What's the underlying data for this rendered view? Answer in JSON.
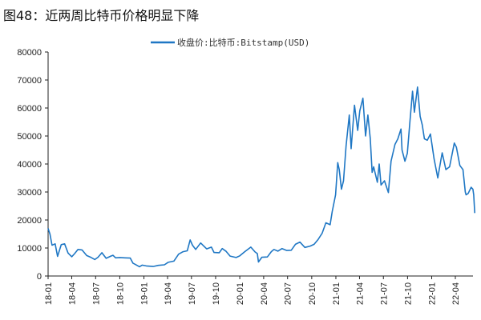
{
  "title": "图48：近两周比特币价格明显下降",
  "chart_data": {
    "type": "line",
    "title": "图48：近两周比特币价格明显下降",
    "xlabel": "",
    "ylabel": "",
    "ylim": [
      0,
      80000
    ],
    "yticks": [
      "0",
      "10000",
      "20000",
      "30000",
      "40000",
      "50000",
      "60000",
      "70000",
      "80000"
    ],
    "xticks": [
      "18-01",
      "18-04",
      "18-07",
      "18-10",
      "19-01",
      "19-04",
      "19-07",
      "19-10",
      "20-01",
      "20-04",
      "20-07",
      "20-10",
      "21-01",
      "21-04",
      "21-07",
      "21-10",
      "22-01",
      "22-04"
    ],
    "grid": false,
    "legend_position": "top-center",
    "color": "#1f77c4",
    "series": [
      {
        "name": "收盘价:比特币:Bitstamp(USD)",
        "points": [
          [
            "2018-01-01",
            17000
          ],
          [
            "2018-01-08",
            15000
          ],
          [
            "2018-01-16",
            11000
          ],
          [
            "2018-01-28",
            11500
          ],
          [
            "2018-02-06",
            7000
          ],
          [
            "2018-02-20",
            11200
          ],
          [
            "2018-03-05",
            11500
          ],
          [
            "2018-03-18",
            8200
          ],
          [
            "2018-04-01",
            6900
          ],
          [
            "2018-04-12",
            8000
          ],
          [
            "2018-04-25",
            9500
          ],
          [
            "2018-05-10",
            9300
          ],
          [
            "2018-05-28",
            7300
          ],
          [
            "2018-06-10",
            6800
          ],
          [
            "2018-06-28",
            5900
          ],
          [
            "2018-07-10",
            6700
          ],
          [
            "2018-07-25",
            8300
          ],
          [
            "2018-08-10",
            6300
          ],
          [
            "2018-08-28",
            7100
          ],
          [
            "2018-09-05",
            7400
          ],
          [
            "2018-09-15",
            6500
          ],
          [
            "2018-10-01",
            6600
          ],
          [
            "2018-10-20",
            6500
          ],
          [
            "2018-11-10",
            6400
          ],
          [
            "2018-11-20",
            4600
          ],
          [
            "2018-11-28",
            4200
          ],
          [
            "2018-12-15",
            3300
          ],
          [
            "2018-12-25",
            3900
          ],
          [
            "2019-01-10",
            3600
          ],
          [
            "2019-02-05",
            3400
          ],
          [
            "2019-02-25",
            3800
          ],
          [
            "2019-03-20",
            4000
          ],
          [
            "2019-04-03",
            4900
          ],
          [
            "2019-04-25",
            5300
          ],
          [
            "2019-05-13",
            7800
          ],
          [
            "2019-05-30",
            8700
          ],
          [
            "2019-06-15",
            9000
          ],
          [
            "2019-06-26",
            12900
          ],
          [
            "2019-07-05",
            11000
          ],
          [
            "2019-07-17",
            9500
          ],
          [
            "2019-08-05",
            11800
          ],
          [
            "2019-08-28",
            9700
          ],
          [
            "2019-09-15",
            10300
          ],
          [
            "2019-09-25",
            8400
          ],
          [
            "2019-10-15",
            8300
          ],
          [
            "2019-10-26",
            9800
          ],
          [
            "2019-11-10",
            8800
          ],
          [
            "2019-11-25",
            7100
          ],
          [
            "2019-12-18",
            6600
          ],
          [
            "2020-01-01",
            7200
          ],
          [
            "2020-01-20",
            8700
          ],
          [
            "2020-02-12",
            10300
          ],
          [
            "2020-02-28",
            8600
          ],
          [
            "2020-03-08",
            8000
          ],
          [
            "2020-03-12",
            5000
          ],
          [
            "2020-03-25",
            6700
          ],
          [
            "2020-04-15",
            6800
          ],
          [
            "2020-04-30",
            8700
          ],
          [
            "2020-05-10",
            9500
          ],
          [
            "2020-05-25",
            8900
          ],
          [
            "2020-06-10",
            9800
          ],
          [
            "2020-06-28",
            9100
          ],
          [
            "2020-07-15",
            9200
          ],
          [
            "2020-07-31",
            11300
          ],
          [
            "2020-08-17",
            12100
          ],
          [
            "2020-09-05",
            10200
          ],
          [
            "2020-09-25",
            10700
          ],
          [
            "2020-10-10",
            11300
          ],
          [
            "2020-10-25",
            13000
          ],
          [
            "2020-11-10",
            15300
          ],
          [
            "2020-11-24",
            19000
          ],
          [
            "2020-12-10",
            18300
          ],
          [
            "2020-12-18",
            23000
          ],
          [
            "2020-12-31",
            29000
          ],
          [
            "2021-01-08",
            40500
          ],
          [
            "2021-01-14",
            38000
          ],
          [
            "2021-01-22",
            31000
          ],
          [
            "2021-01-30",
            34000
          ],
          [
            "2021-02-09",
            46500
          ],
          [
            "2021-02-21",
            57500
          ],
          [
            "2021-02-28",
            45500
          ],
          [
            "2021-03-13",
            61000
          ],
          [
            "2021-03-25",
            52000
          ],
          [
            "2021-04-02",
            59000
          ],
          [
            "2021-04-14",
            63500
          ],
          [
            "2021-04-24",
            50000
          ],
          [
            "2021-05-03",
            57500
          ],
          [
            "2021-05-12",
            49000
          ],
          [
            "2021-05-19",
            37000
          ],
          [
            "2021-05-25",
            39000
          ],
          [
            "2021-06-08",
            33500
          ],
          [
            "2021-06-15",
            40000
          ],
          [
            "2021-06-22",
            32500
          ],
          [
            "2021-07-05",
            34000
          ],
          [
            "2021-07-20",
            29800
          ],
          [
            "2021-07-30",
            41000
          ],
          [
            "2021-08-14",
            47000
          ],
          [
            "2021-08-25",
            49000
          ],
          [
            "2021-09-06",
            52500
          ],
          [
            "2021-09-10",
            45000
          ],
          [
            "2021-09-21",
            41000
          ],
          [
            "2021-09-30",
            43800
          ],
          [
            "2021-10-10",
            55000
          ],
          [
            "2021-10-20",
            66000
          ],
          [
            "2021-10-27",
            58500
          ],
          [
            "2021-11-08",
            67500
          ],
          [
            "2021-11-18",
            57000
          ],
          [
            "2021-11-26",
            54000
          ],
          [
            "2021-12-04",
            49000
          ],
          [
            "2021-12-15",
            48500
          ],
          [
            "2021-12-27",
            50700
          ],
          [
            "2022-01-10",
            41800
          ],
          [
            "2022-01-24",
            35000
          ],
          [
            "2022-02-05",
            41500
          ],
          [
            "2022-02-10",
            44000
          ],
          [
            "2022-02-24",
            38000
          ],
          [
            "2022-03-10",
            39000
          ],
          [
            "2022-03-28",
            47500
          ],
          [
            "2022-04-05",
            46000
          ],
          [
            "2022-04-18",
            39500
          ],
          [
            "2022-04-30",
            38000
          ],
          [
            "2022-05-09",
            30000
          ],
          [
            "2022-05-12",
            29000
          ],
          [
            "2022-05-20",
            29500
          ],
          [
            "2022-05-31",
            31700
          ],
          [
            "2022-06-07",
            31000
          ],
          [
            "2022-06-10",
            29000
          ],
          [
            "2022-06-14",
            22500
          ]
        ]
      }
    ]
  }
}
